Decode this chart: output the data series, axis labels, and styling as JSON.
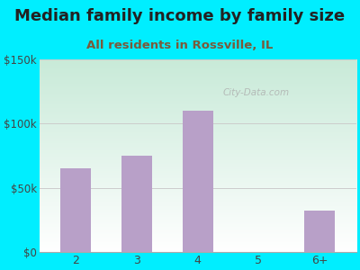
{
  "title": "Median family income by family size",
  "subtitle": "All residents in Rossville, IL",
  "categories": [
    "2",
    "3",
    "4",
    "5",
    "6+"
  ],
  "values": [
    65000,
    75000,
    110000,
    0,
    32000
  ],
  "bar_color": "#b8a0c8",
  "ylim": [
    0,
    150000
  ],
  "yticks": [
    0,
    50000,
    100000,
    150000
  ],
  "ytick_labels": [
    "$0",
    "$50k",
    "$100k",
    "$150k"
  ],
  "outer_bg": "#00eeff",
  "plot_bg_topleft": "#c8ead8",
  "plot_bg_bottomright": "#ffffff",
  "title_color": "#222222",
  "subtitle_color": "#7a5a3a",
  "tick_color": "#444444",
  "watermark_text": "City-Data.com",
  "title_fontsize": 13,
  "subtitle_fontsize": 9.5,
  "grid_color": "#cccccc",
  "bar_width": 0.5
}
